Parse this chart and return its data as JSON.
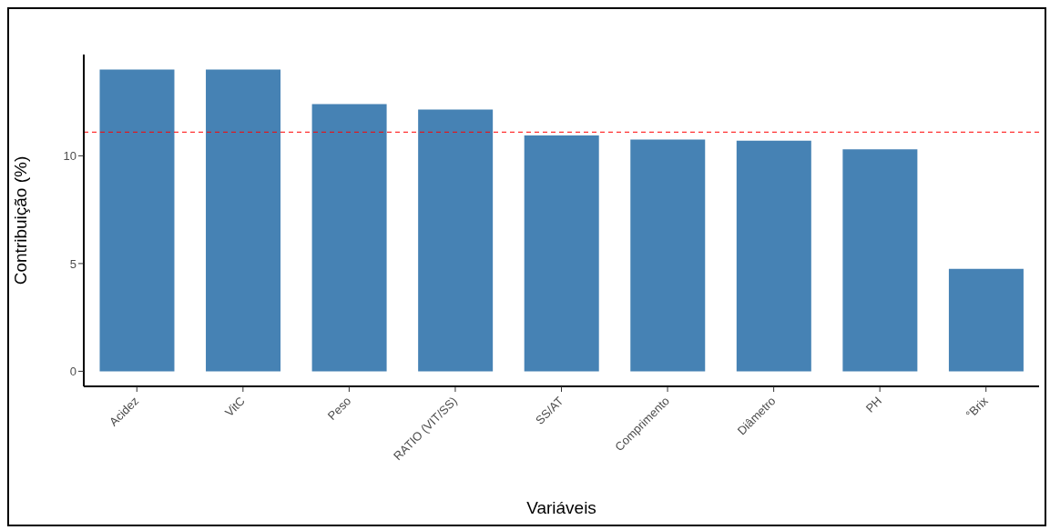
{
  "chart_data": {
    "type": "bar",
    "xlabel": "Variáveis",
    "ylabel": "Contribuição (%)",
    "categories": [
      "Acidez",
      "VitC",
      "Peso",
      "RATIO (VIT/SS)",
      "SS/AT",
      "Comprimento",
      "Diâmetro",
      "PH",
      "°Brix"
    ],
    "values": [
      14.0,
      14.0,
      12.4,
      12.15,
      10.95,
      10.75,
      10.7,
      10.3,
      4.75
    ],
    "color": "#4682b4",
    "ylim": [
      -0.7,
      14.7
    ],
    "yticks": [
      0,
      5,
      10
    ],
    "grid": false,
    "ref_lines": [
      {
        "axis": "y",
        "value": 11.1,
        "color": "#ff0000",
        "line_style": "dashed"
      }
    ]
  }
}
